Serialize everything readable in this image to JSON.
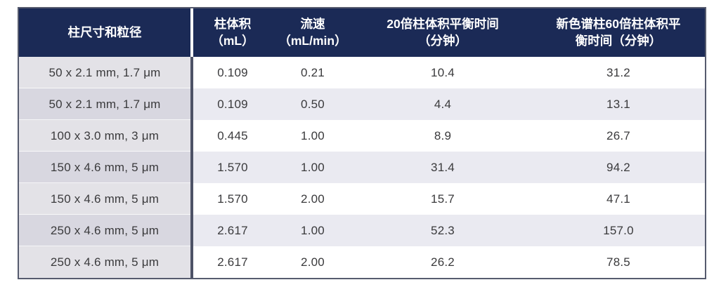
{
  "table": {
    "header": {
      "dimension": "柱尺寸和粒径",
      "volume": "柱体积\n（mL）",
      "flow": "流速\n（mL/min）",
      "equil20": "20倍柱体积平衡时间\n（分钟）",
      "equil60": "新色谱柱60倍柱体积平\n衡时间（分钟）"
    },
    "rows": [
      {
        "dimension": "50 x 2.1 mm, 1.7 μm",
        "volume": "0.109",
        "flow": "0.21",
        "equil20": "10.4",
        "equil60": "31.2"
      },
      {
        "dimension": "50 x 2.1 mm, 1.7 μm",
        "volume": "0.109",
        "flow": "0.50",
        "equil20": "4.4",
        "equil60": "13.1"
      },
      {
        "dimension": "100 x 3.0 mm, 3 μm",
        "volume": "0.445",
        "flow": "1.00",
        "equil20": "8.9",
        "equil60": "26.7"
      },
      {
        "dimension": "150 x 4.6 mm, 5 μm",
        "volume": "1.570",
        "flow": "1.00",
        "equil20": "31.4",
        "equil60": "94.2"
      },
      {
        "dimension": "150 x 4.6 mm, 5 μm",
        "volume": "1.570",
        "flow": "2.00",
        "equil20": "15.7",
        "equil60": "47.1"
      },
      {
        "dimension": "250 x 4.6 mm, 5 μm",
        "volume": "2.617",
        "flow": "1.00",
        "equil20": "52.3",
        "equil60": "157.0"
      },
      {
        "dimension": "250 x 4.6 mm, 5 μm",
        "volume": "2.617",
        "flow": "2.00",
        "equil20": "26.2",
        "equil60": "78.5"
      }
    ],
    "colors": {
      "header_bg": "#1b2a56",
      "header_text": "#ffffff",
      "row_odd_bg": "#ffffff",
      "row_even_bg": "#eaeaf1",
      "label_col_odd_bg": "#e3e2e7",
      "label_col_even_bg": "#d8d7e0",
      "outer_border": "#565b6e",
      "label_divider": "#4d5266",
      "body_text": "#3a3a3c"
    }
  }
}
